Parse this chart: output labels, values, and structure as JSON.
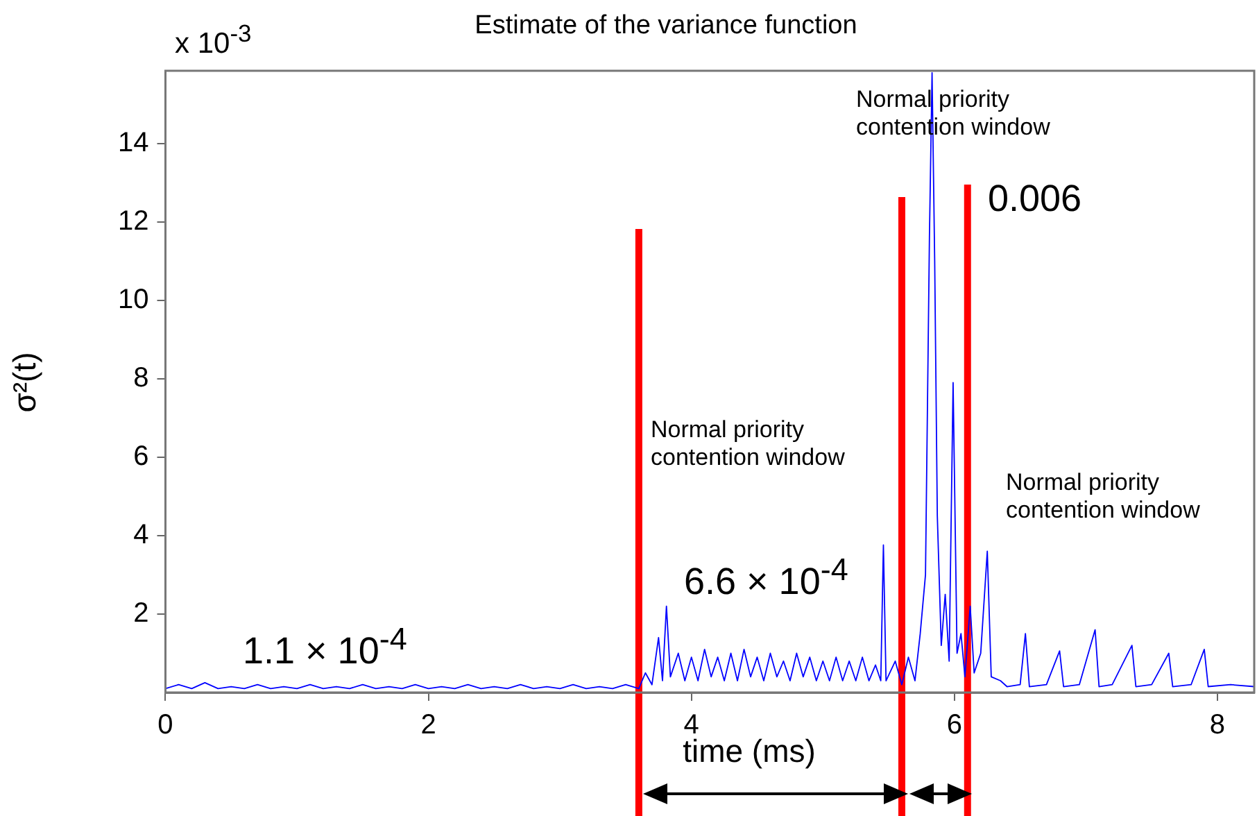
{
  "chart_data": {
    "type": "line",
    "title": "Estimate of the variance function",
    "xlabel": "time (ms)",
    "ylabel": "σ²(t)",
    "annotations": [
      "x 10$^{-3}$",
      "1.1  × 10$^{-4}$",
      "6.6 × 10$^{-4}$",
      "0.006",
      "Normal priority\ncontention window",
      "Normal priority\ncontention window",
      "Normal priority\ncontention window"
    ],
    "xlim": [
      0,
      8.28
    ],
    "xticks": [
      0,
      2,
      4,
      6,
      8
    ],
    "ylim": [
      0,
      15.85
    ],
    "yticks": [
      2,
      4,
      6,
      8,
      10,
      12,
      14
    ],
    "ref_lines": [
      {
        "axis": "x",
        "value": 3.6,
        "color": "#ff0000"
      },
      {
        "axis": "x",
        "value": 5.6,
        "color": "#ff0000"
      },
      {
        "axis": "x",
        "value": 6.1,
        "color": "#ff0000"
      }
    ],
    "grid": false,
    "legend": false,
    "marker": "none",
    "line_style": "solid",
    "series": [
      {
        "color": "#0000ff",
        "x": [
          0,
          0.1,
          0.2,
          0.3,
          0.4,
          0.5,
          0.6,
          0.7,
          0.8,
          0.9,
          1.0,
          1.1,
          1.2,
          1.3,
          1.4,
          1.5,
          1.6,
          1.7,
          1.8,
          1.9,
          2.0,
          2.1,
          2.2,
          2.3,
          2.4,
          2.5,
          2.6,
          2.7,
          2.8,
          2.9,
          3.0,
          3.1,
          3.2,
          3.3,
          3.4,
          3.5,
          3.6,
          3.65,
          3.7,
          3.75,
          3.78,
          3.81,
          3.84,
          3.9,
          3.95,
          4.0,
          4.05,
          4.1,
          4.15,
          4.2,
          4.25,
          4.3,
          4.35,
          4.4,
          4.45,
          4.5,
          4.55,
          4.6,
          4.65,
          4.7,
          4.75,
          4.8,
          4.85,
          4.9,
          4.95,
          5.0,
          5.05,
          5.1,
          5.15,
          5.2,
          5.25,
          5.3,
          5.35,
          5.4,
          5.44,
          5.46,
          5.48,
          5.55,
          5.6,
          5.65,
          5.7,
          5.74,
          5.78,
          5.81,
          5.83,
          5.85,
          5.87,
          5.9,
          5.93,
          5.96,
          5.99,
          6.02,
          6.05,
          6.08,
          6.12,
          6.15,
          6.2,
          6.25,
          6.28,
          6.35,
          6.4,
          6.5,
          6.54,
          6.57,
          6.7,
          6.8,
          6.83,
          6.95,
          7.07,
          7.1,
          7.2,
          7.35,
          7.38,
          7.5,
          7.63,
          7.66,
          7.8,
          7.9,
          7.93,
          8.1,
          8.28
        ],
        "values": [
          0.1,
          0.2,
          0.1,
          0.25,
          0.1,
          0.15,
          0.1,
          0.2,
          0.1,
          0.15,
          0.1,
          0.2,
          0.1,
          0.15,
          0.1,
          0.2,
          0.1,
          0.15,
          0.1,
          0.2,
          0.1,
          0.15,
          0.1,
          0.2,
          0.1,
          0.15,
          0.1,
          0.2,
          0.1,
          0.15,
          0.1,
          0.2,
          0.1,
          0.15,
          0.1,
          0.2,
          0.1,
          0.5,
          0.2,
          1.4,
          0.3,
          2.2,
          0.4,
          1.0,
          0.3,
          0.9,
          0.3,
          1.1,
          0.4,
          0.9,
          0.3,
          1.0,
          0.3,
          1.1,
          0.4,
          0.9,
          0.3,
          1.0,
          0.4,
          0.8,
          0.3,
          1.0,
          0.4,
          0.9,
          0.3,
          0.8,
          0.3,
          0.9,
          0.3,
          0.8,
          0.3,
          0.9,
          0.3,
          0.7,
          0.3,
          3.76,
          0.3,
          0.8,
          0.2,
          0.9,
          0.3,
          1.5,
          3.0,
          11.6,
          15.8,
          11.0,
          4.5,
          1.2,
          2.5,
          0.8,
          7.9,
          1.0,
          1.5,
          0.4,
          2.2,
          0.5,
          1.0,
          3.6,
          0.4,
          0.3,
          0.15,
          0.2,
          1.5,
          0.15,
          0.2,
          1.06,
          0.15,
          0.2,
          1.6,
          0.15,
          0.2,
          1.2,
          0.15,
          0.2,
          1.0,
          0.15,
          0.2,
          1.1,
          0.15,
          0.2,
          0.15
        ]
      }
    ]
  }
}
